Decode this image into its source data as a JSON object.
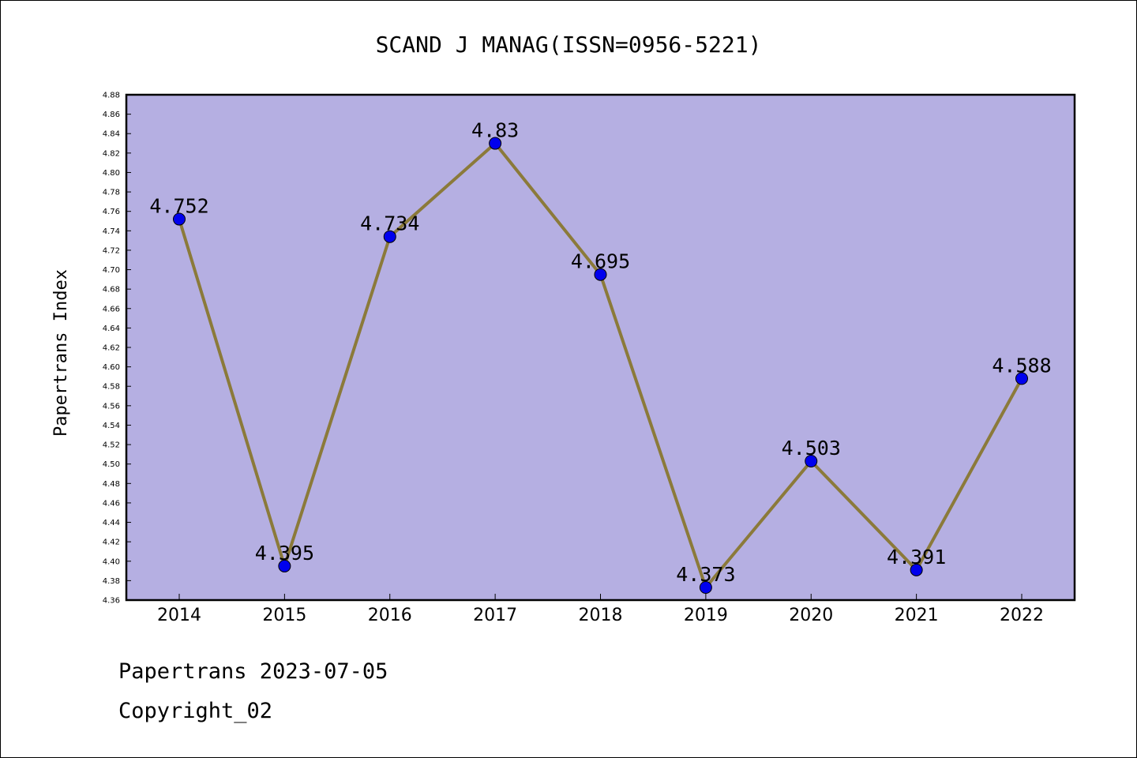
{
  "chart_data": {
    "type": "line",
    "title": "SCAND J MANAG(ISSN=0956-5221)",
    "xlabel": "",
    "ylabel": "Papertrans Index",
    "x": [
      "2014",
      "2015",
      "2016",
      "2017",
      "2018",
      "2019",
      "2020",
      "2021",
      "2022"
    ],
    "series": [
      {
        "values": [
          4.752,
          4.395,
          4.734,
          4.83,
          4.695,
          4.373,
          4.503,
          4.391,
          4.588
        ],
        "labels": [
          "4.752",
          "4.395",
          "4.734",
          "4.83",
          "4.695",
          "4.373",
          "4.503",
          "4.391",
          "4.588"
        ]
      }
    ],
    "ylim": [
      4.36,
      4.88
    ],
    "yticks": [
      "4.36",
      "4.38",
      "4.40",
      "4.42",
      "4.44",
      "4.46",
      "4.48",
      "4.50",
      "4.52",
      "4.54",
      "4.56",
      "4.58",
      "4.60",
      "4.62",
      "4.64",
      "4.66",
      "4.68",
      "4.70",
      "4.72",
      "4.74",
      "4.76",
      "4.78",
      "4.80",
      "4.82",
      "4.84",
      "4.86",
      "4.88"
    ],
    "grid": false,
    "colors": {
      "plot_bg": "#b5afe2",
      "line": "#8b7a3a",
      "marker": "#0000ee"
    }
  },
  "footer": {
    "line1": "Papertrans 2023-07-05",
    "line2": "Copyright_02"
  }
}
